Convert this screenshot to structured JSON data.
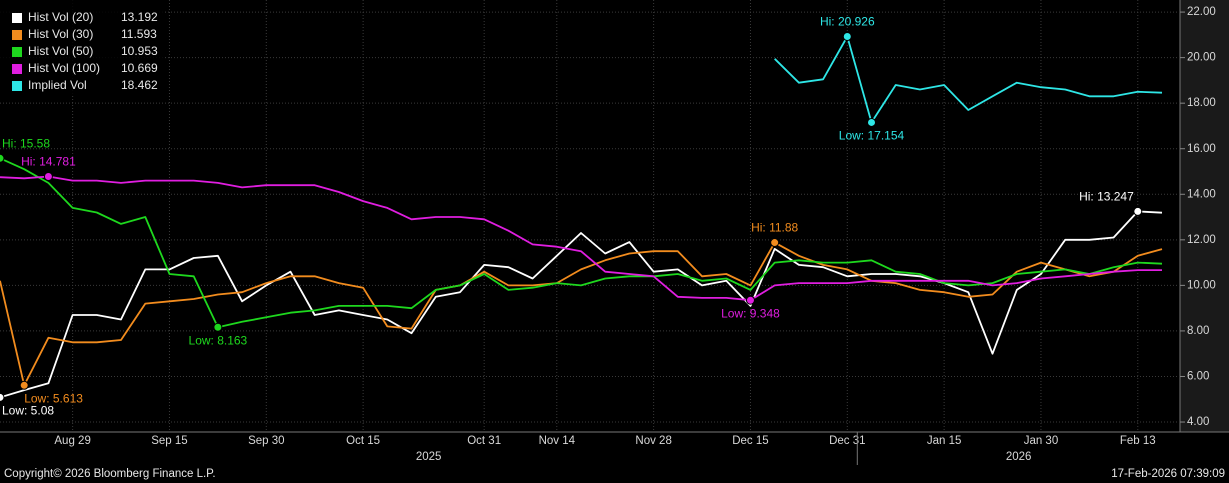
{
  "chart_data": {
    "type": "line",
    "categories": [
      null,
      null,
      null,
      "Aug 29",
      null,
      null,
      null,
      "Sep 15",
      null,
      null,
      null,
      "Sep 30",
      null,
      null,
      null,
      "Oct 15",
      null,
      null,
      null,
      null,
      "Oct 31",
      null,
      null,
      "Nov 14",
      null,
      null,
      null,
      "Nov 28",
      null,
      null,
      null,
      "Dec 15",
      null,
      null,
      null,
      "Dec 31",
      null,
      null,
      null,
      "Jan 15",
      null,
      null,
      null,
      "Jan 30",
      null,
      null,
      null,
      "Feb 13",
      null
    ],
    "years": [
      "2025",
      "2026"
    ],
    "ylim": [
      3.65,
      22.53
    ],
    "yticks": [
      {
        "value": 4,
        "label": "4.00"
      },
      {
        "value": 6,
        "label": "6.00"
      },
      {
        "value": 8,
        "label": "8.00"
      },
      {
        "value": 10,
        "label": "10.00"
      },
      {
        "value": 12,
        "label": "12.00"
      },
      {
        "value": 14,
        "label": "14.00"
      },
      {
        "value": 16,
        "label": "16.00"
      },
      {
        "value": 18,
        "label": "18.00"
      },
      {
        "value": 20,
        "label": "20.00"
      },
      {
        "value": 22,
        "label": "22.00"
      }
    ],
    "grid": true,
    "series": [
      {
        "name": "Hist Vol (20)",
        "color": "#ffffff",
        "last": 13.192,
        "high_label": "Hi: 13.247",
        "low_label": "Low: 5.08",
        "values": [
          5.08,
          5.4,
          5.7,
          8.7,
          8.7,
          8.5,
          10.7,
          10.7,
          11.2,
          11.3,
          9.3,
          10.0,
          10.6,
          8.7,
          8.9,
          8.7,
          8.5,
          7.9,
          9.5,
          9.7,
          10.9,
          10.8,
          10.3,
          11.3,
          12.3,
          11.4,
          11.9,
          10.6,
          10.7,
          10.0,
          10.2,
          9.1,
          11.6,
          10.9,
          10.8,
          10.4,
          10.5,
          10.5,
          10.4,
          10.1,
          9.7,
          7.0,
          9.8,
          10.5,
          12.0,
          12.0,
          12.1,
          13.247,
          13.192
        ]
      },
      {
        "name": "Hist Vol (30)",
        "color": "#f28c1e",
        "last": 11.593,
        "high_label": "Hi: 11.88",
        "low_label": "Low: 5.613",
        "values": [
          10.2,
          5.613,
          7.7,
          7.5,
          7.5,
          7.6,
          9.2,
          9.3,
          9.4,
          9.6,
          9.7,
          10.1,
          10.4,
          10.4,
          10.1,
          9.9,
          8.2,
          8.1,
          9.8,
          10.0,
          10.6,
          10.0,
          10.0,
          10.1,
          10.7,
          11.1,
          11.4,
          11.5,
          11.5,
          10.4,
          10.5,
          10.0,
          11.88,
          11.3,
          10.9,
          10.7,
          10.2,
          10.1,
          9.8,
          9.7,
          9.5,
          9.6,
          10.6,
          11.0,
          10.7,
          10.4,
          10.6,
          11.3,
          11.593
        ]
      },
      {
        "name": "Hist Vol (50)",
        "color": "#1ed81e",
        "last": 10.953,
        "high_label": "Hi: 15.58",
        "low_label": "Low: 8.163",
        "values": [
          15.58,
          15.1,
          14.5,
          13.4,
          13.2,
          12.7,
          13.0,
          10.5,
          10.4,
          8.163,
          8.4,
          8.6,
          8.8,
          8.9,
          9.1,
          9.1,
          9.1,
          9.0,
          9.8,
          10.0,
          10.5,
          9.8,
          9.9,
          10.1,
          10.0,
          10.3,
          10.4,
          10.4,
          10.5,
          10.2,
          10.3,
          9.8,
          11.0,
          11.1,
          11.0,
          11.0,
          11.1,
          10.6,
          10.5,
          10.1,
          10.0,
          10.1,
          10.5,
          10.6,
          10.7,
          10.5,
          10.8,
          11.0,
          10.953
        ]
      },
      {
        "name": "Hist Vol (100)",
        "color": "#e01ee0",
        "last": 10.669,
        "high_label": "Hi: 14.781",
        "low_label": "Low: 9.348",
        "values": [
          14.75,
          14.7,
          14.781,
          14.6,
          14.6,
          14.5,
          14.6,
          14.6,
          14.6,
          14.5,
          14.3,
          14.4,
          14.4,
          14.4,
          14.1,
          13.7,
          13.4,
          12.9,
          13.0,
          13.0,
          12.9,
          12.4,
          11.8,
          11.7,
          11.5,
          10.6,
          10.5,
          10.4,
          9.5,
          9.45,
          9.45,
          9.348,
          10.0,
          10.1,
          10.1,
          10.1,
          10.2,
          10.2,
          10.2,
          10.2,
          10.2,
          10.0,
          10.1,
          10.3,
          10.4,
          10.5,
          10.6,
          10.67,
          10.669
        ]
      },
      {
        "name": "Implied Vol",
        "color": "#2ee6e6",
        "last": 18.462,
        "high_label": "Hi: 20.926",
        "low_label": "Low: 17.154",
        "values": [
          null,
          null,
          null,
          null,
          null,
          null,
          null,
          null,
          null,
          null,
          null,
          null,
          null,
          null,
          null,
          null,
          null,
          null,
          null,
          null,
          null,
          null,
          null,
          null,
          null,
          null,
          null,
          null,
          null,
          null,
          null,
          null,
          19.95,
          18.9,
          19.05,
          20.926,
          17.154,
          18.8,
          18.6,
          18.8,
          17.7,
          18.3,
          18.9,
          18.7,
          18.6,
          18.3,
          18.3,
          18.5,
          18.462
        ]
      }
    ]
  },
  "footer": {
    "copyright": "Copyright© 2026 Bloomberg Finance L.P.",
    "timestamp": "17-Feb-2026 07:39:09"
  }
}
